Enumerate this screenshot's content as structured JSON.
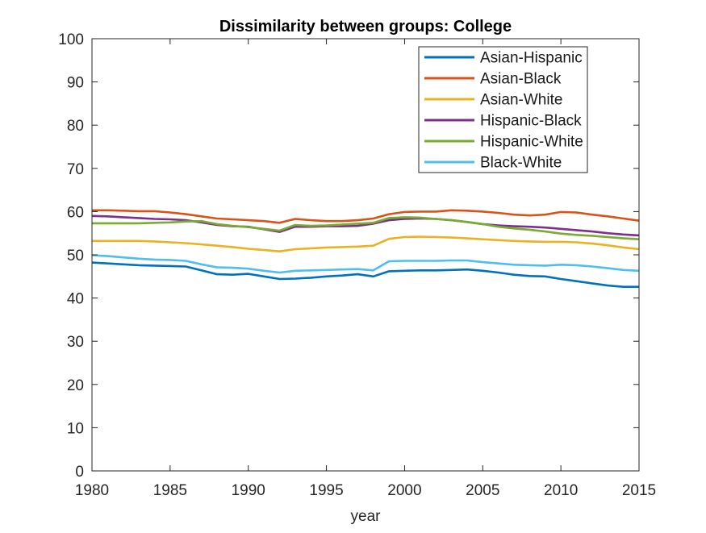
{
  "figure": {
    "background": "#ffffff",
    "axis_color": "#262626"
  },
  "chart_data": {
    "type": "line",
    "title": "Dissimilarity between groups: College",
    "xlabel": "year",
    "ylabel": "",
    "xlim": [
      1980,
      2015
    ],
    "ylim": [
      0,
      100
    ],
    "xticks": [
      "1980",
      "1985",
      "1990",
      "1995",
      "2000",
      "2005",
      "2010",
      "2015"
    ],
    "xtick_values": [
      1980,
      1985,
      1990,
      1995,
      2000,
      2005,
      2010,
      2015
    ],
    "yticks": [
      "0",
      "10",
      "20",
      "30",
      "40",
      "50",
      "60",
      "70",
      "80",
      "90",
      "100"
    ],
    "ytick_values": [
      0,
      10,
      20,
      30,
      40,
      50,
      60,
      70,
      80,
      90,
      100
    ],
    "grid": false,
    "box": true,
    "tick_direction": "in",
    "legend": {
      "position": "top-right-inside",
      "border_color": "#262626",
      "background": "#ffffff"
    },
    "x": [
      1980,
      1981,
      1982,
      1983,
      1984,
      1985,
      1986,
      1987,
      1988,
      1989,
      1990,
      1991,
      1992,
      1993,
      1994,
      1995,
      1996,
      1997,
      1998,
      1999,
      2000,
      2001,
      2002,
      2003,
      2004,
      2005,
      2006,
      2007,
      2008,
      2009,
      2010,
      2011,
      2012,
      2013,
      2014,
      2015
    ],
    "series": [
      {
        "name": "Asian-Hispanic",
        "color": "#0072BD",
        "values": [
          48.2,
          48.0,
          47.8,
          47.6,
          47.5,
          47.4,
          47.3,
          46.4,
          45.5,
          45.4,
          45.6,
          45.0,
          44.4,
          44.5,
          44.7,
          45.0,
          45.2,
          45.5,
          45.0,
          46.2,
          46.3,
          46.4,
          46.4,
          46.5,
          46.6,
          46.3,
          45.9,
          45.4,
          45.1,
          45.0,
          44.4,
          43.9,
          43.4,
          42.9,
          42.6,
          42.6
        ]
      },
      {
        "name": "Asian-Black",
        "color": "#D95319",
        "values": [
          60.3,
          60.3,
          60.2,
          60.1,
          60.1,
          59.8,
          59.4,
          58.9,
          58.4,
          58.2,
          58.0,
          57.8,
          57.4,
          58.3,
          58.0,
          57.8,
          57.8,
          58.0,
          58.4,
          59.4,
          59.9,
          60.0,
          60.0,
          60.3,
          60.2,
          60.0,
          59.7,
          59.3,
          59.1,
          59.3,
          59.9,
          59.8,
          59.3,
          58.9,
          58.4,
          57.9
        ]
      },
      {
        "name": "Asian-White",
        "color": "#EDB120",
        "values": [
          53.2,
          53.2,
          53.2,
          53.2,
          53.1,
          52.9,
          52.7,
          52.4,
          52.1,
          51.8,
          51.4,
          51.1,
          50.8,
          51.3,
          51.5,
          51.7,
          51.8,
          51.9,
          52.1,
          53.7,
          54.1,
          54.2,
          54.1,
          54.0,
          53.8,
          53.6,
          53.4,
          53.2,
          53.1,
          53.0,
          53.0,
          52.9,
          52.6,
          52.2,
          51.7,
          51.3
        ]
      },
      {
        "name": "Hispanic-Black",
        "color": "#7E2F8E",
        "values": [
          59.0,
          58.9,
          58.7,
          58.5,
          58.3,
          58.2,
          58.0,
          57.5,
          56.9,
          56.6,
          56.5,
          55.9,
          55.3,
          56.5,
          56.5,
          56.6,
          56.6,
          56.7,
          57.2,
          58.0,
          58.3,
          58.4,
          58.3,
          58.0,
          57.6,
          57.1,
          56.8,
          56.6,
          56.5,
          56.3,
          56.0,
          55.7,
          55.4,
          55.0,
          54.7,
          54.5
        ]
      },
      {
        "name": "Hispanic-White",
        "color": "#77AC30",
        "values": [
          57.3,
          57.3,
          57.3,
          57.3,
          57.4,
          57.5,
          57.7,
          57.8,
          57.1,
          56.7,
          56.4,
          56.0,
          55.6,
          56.9,
          56.7,
          56.8,
          57.0,
          57.2,
          57.4,
          58.5,
          58.7,
          58.6,
          58.3,
          58.0,
          57.6,
          57.1,
          56.5,
          56.1,
          55.8,
          55.4,
          54.9,
          54.6,
          54.4,
          54.1,
          53.8,
          53.6
        ]
      },
      {
        "name": "Black-White",
        "color": "#4DBEEE",
        "values": [
          49.9,
          49.7,
          49.4,
          49.1,
          48.9,
          48.8,
          48.6,
          47.8,
          47.1,
          47.0,
          46.8,
          46.3,
          45.9,
          46.3,
          46.4,
          46.5,
          46.6,
          46.7,
          46.4,
          48.5,
          48.6,
          48.6,
          48.6,
          48.7,
          48.7,
          48.3,
          48.0,
          47.7,
          47.6,
          47.5,
          47.7,
          47.6,
          47.3,
          46.9,
          46.5,
          46.3
        ]
      }
    ]
  }
}
